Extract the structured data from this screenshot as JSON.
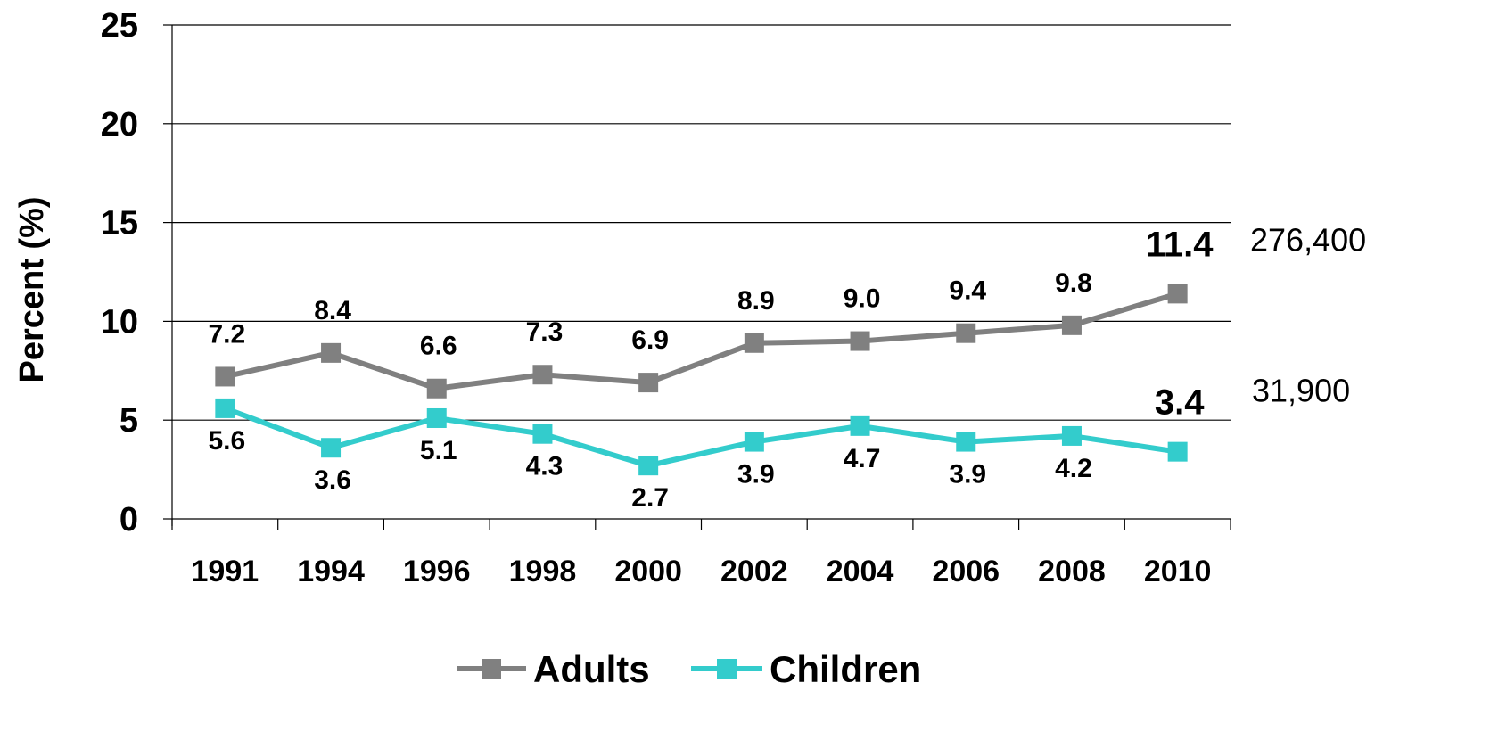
{
  "chart_data": {
    "type": "line",
    "ylabel": "Percent  (%)",
    "xlabel": "",
    "ylim": [
      0,
      25
    ],
    "yticks": [
      "0",
      "5",
      "10",
      "15",
      "20",
      "25"
    ],
    "categories": [
      "1991",
      "1994",
      "1996",
      "1998",
      "2000",
      "2002",
      "2004",
      "2006",
      "2008",
      "2010"
    ],
    "grid": "horizontal",
    "legend_position": "bottom",
    "series": [
      {
        "name": "Adults",
        "color": "#808080",
        "values": [
          7.2,
          8.4,
          6.6,
          7.3,
          6.9,
          8.9,
          9.0,
          9.4,
          9.8,
          11.4
        ],
        "labels": [
          "7.2",
          "8.4",
          "6.6",
          "7.3",
          "6.9",
          "8.9",
          "9.0",
          "9.4",
          "9.8",
          "11.4"
        ],
        "end_annotation": "276,400"
      },
      {
        "name": "Children",
        "color": "#33CCCC",
        "values": [
          5.6,
          3.6,
          5.1,
          4.3,
          2.7,
          3.9,
          4.7,
          3.9,
          4.2,
          3.4
        ],
        "labels": [
          "5.6",
          "3.6",
          "5.1",
          "4.3",
          "2.7",
          "3.9",
          "4.7",
          "3.9",
          "4.2",
          "3.4"
        ],
        "end_annotation": "31,900"
      }
    ]
  }
}
